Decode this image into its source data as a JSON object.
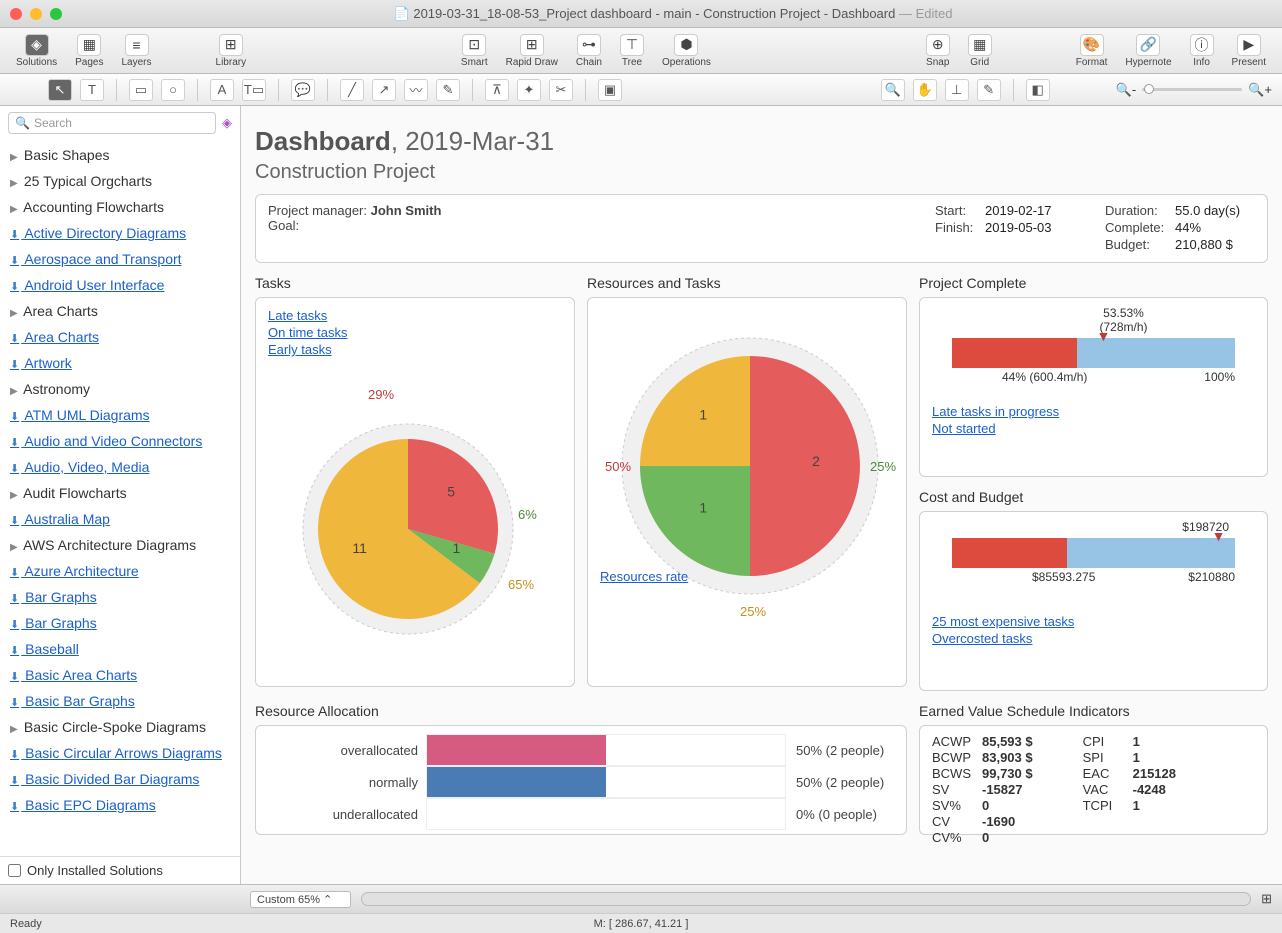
{
  "window": {
    "title_prefix": "2019-03-31_18-08-53_Project dashboard - main - Construction Project - Dashboard",
    "edited": "— Edited",
    "traffic": [
      "#ff5f57",
      "#febc2e",
      "#28c840"
    ]
  },
  "toolbar": {
    "solutions": "Solutions",
    "pages": "Pages",
    "layers": "Layers",
    "library": "Library",
    "smart": "Smart",
    "rapid": "Rapid Draw",
    "chain": "Chain",
    "tree": "Tree",
    "operations": "Operations",
    "snap": "Snap",
    "grid": "Grid",
    "format": "Format",
    "hypernote": "Hypernote",
    "info": "Info",
    "present": "Present"
  },
  "search_placeholder": "Search",
  "libs": [
    {
      "label": "Basic Shapes",
      "type": "exp"
    },
    {
      "label": "25 Typical Orgcharts",
      "type": "exp"
    },
    {
      "label": "Accounting Flowcharts",
      "type": "exp"
    },
    {
      "label": "Active Directory Diagrams",
      "type": "dl"
    },
    {
      "label": "Aerospace and Transport",
      "type": "dl"
    },
    {
      "label": "Android User Interface",
      "type": "dl"
    },
    {
      "label": "Area Charts",
      "type": "exp"
    },
    {
      "label": "Area Charts",
      "type": "dl"
    },
    {
      "label": "Artwork",
      "type": "dl"
    },
    {
      "label": "Astronomy",
      "type": "exp"
    },
    {
      "label": "ATM UML Diagrams",
      "type": "dl"
    },
    {
      "label": "Audio and Video Connectors",
      "type": "dl"
    },
    {
      "label": "Audio, Video, Media",
      "type": "dl"
    },
    {
      "label": "Audit Flowcharts",
      "type": "exp"
    },
    {
      "label": "Australia Map",
      "type": "dl"
    },
    {
      "label": "AWS Architecture Diagrams",
      "type": "exp"
    },
    {
      "label": "Azure Architecture",
      "type": "dl"
    },
    {
      "label": "Bar Graphs",
      "type": "dl"
    },
    {
      "label": "Bar Graphs",
      "type": "dl"
    },
    {
      "label": "Baseball",
      "type": "dl"
    },
    {
      "label": "Basic Area Charts",
      "type": "dl"
    },
    {
      "label": "Basic Bar Graphs",
      "type": "dl"
    },
    {
      "label": "Basic Circle-Spoke Diagrams",
      "type": "exp"
    },
    {
      "label": "Basic Circular Arrows Diagrams",
      "type": "dl"
    },
    {
      "label": "Basic Divided Bar Diagrams",
      "type": "dl"
    },
    {
      "label": "Basic EPC Diagrams",
      "type": "dl"
    }
  ],
  "only_installed": "Only Installed Solutions",
  "dashboard": {
    "title_bold": "Dashboard",
    "title_date": ", 2019-Mar-31",
    "subtitle": "Construction Project",
    "header": {
      "pm_label": "Project manager: ",
      "pm": "John Smith",
      "goal_label": "Goal:",
      "start_label": "Start:",
      "start": "2019-02-17",
      "finish_label": "Finish:",
      "finish": "2019-05-03",
      "duration_label": "Duration:",
      "duration": "55.0 day(s)",
      "complete_label": "Complete:",
      "complete": "44%",
      "budget_label": "Budget:",
      "budget": "210,880 $"
    },
    "tasks": {
      "title": "Tasks",
      "links": [
        "Late tasks",
        "On time tasks",
        "Early tasks"
      ],
      "slices": [
        {
          "value": 5,
          "pct": "29%",
          "color": "#e55c5c",
          "pct_color": "#c23b3b"
        },
        {
          "value": 1,
          "pct": "6%",
          "color": "#6fb85e",
          "pct_color": "#4a8a3a"
        },
        {
          "value": 11,
          "pct": "65%",
          "color": "#f0b73d",
          "pct_color": "#c88f1c"
        }
      ]
    },
    "resources": {
      "title": "Resources and Tasks",
      "link": "Resources rate",
      "slices": [
        {
          "value": 2,
          "pct": "50%",
          "color": "#e55c5c",
          "pct_color": "#c23b3b"
        },
        {
          "value": 1,
          "pct": "25%",
          "color": "#6fb85e",
          "pct_color": "#4a8a3a"
        },
        {
          "value": 1,
          "pct": "25%",
          "color": "#f0b73d",
          "pct_color": "#c88f1c"
        }
      ]
    },
    "complete_panel": {
      "title": "Project Complete",
      "top_pct": "53.53%",
      "top_hours": "(728m/h)",
      "progress_pct": 44,
      "marker_pct": 53.53,
      "left_label": "44% (600.4m/h)",
      "right_label": "100%",
      "colors": {
        "done": "#dd4a3e",
        "remain": "#97c4e4"
      },
      "links": [
        "Late tasks in progress",
        "Not started"
      ]
    },
    "cost": {
      "title": "Cost and Budget",
      "marker_label": "$198720",
      "marker_pct": 94.2,
      "actual_pct": 40.6,
      "actual_label": "$85593.275",
      "budget_label": "$210880",
      "colors": {
        "actual": "#dd4a3e",
        "remain": "#97c4e4"
      },
      "links": [
        "25 most expensive tasks",
        "Overcosted tasks"
      ]
    },
    "allocation": {
      "title": "Resource Allocation",
      "rows": [
        {
          "label": "over​allocated",
          "pct": 50,
          "text": "50% (2 people)",
          "color": "#d65b80"
        },
        {
          "label": "normally",
          "pct": 50,
          "text": "50% (2 people)",
          "color": "#4a7bb5"
        },
        {
          "label": "under​allocated",
          "pct": 0,
          "text": "0% (0 people)",
          "color": "#9fc27c"
        }
      ]
    },
    "earned": {
      "title": "Earned Value Schedule Indicators",
      "col1": [
        {
          "k": "ACWP",
          "v": "85,593 $"
        },
        {
          "k": "BCWP",
          "v": "83,903 $"
        },
        {
          "k": "BCWS",
          "v": "99,730 $"
        },
        {
          "k": "SV",
          "v": "-15827"
        },
        {
          "k": "SV%",
          "v": "0"
        },
        {
          "k": "CV",
          "v": "-1690"
        },
        {
          "k": "CV%",
          "v": "0"
        }
      ],
      "col2": [
        {
          "k": "CPI",
          "v": "1"
        },
        {
          "k": "SPI",
          "v": "1"
        },
        {
          "k": "EAC",
          "v": "215128"
        },
        {
          "k": "VAC",
          "v": "-4248"
        },
        {
          "k": "TCPI",
          "v": "1"
        }
      ]
    }
  },
  "zoom_label": "Custom 65%",
  "status_ready": "Ready",
  "status_coords": "M: [ 286.67, 41.21 ]"
}
